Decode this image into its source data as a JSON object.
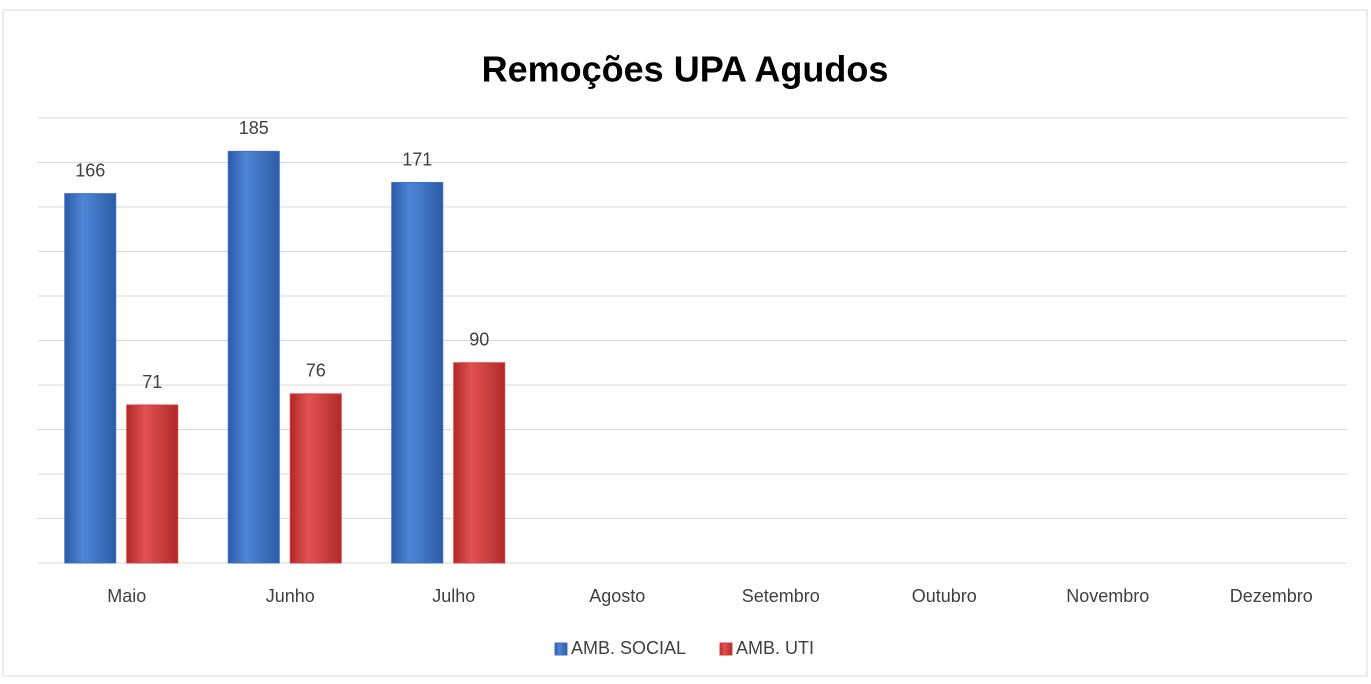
{
  "chart_data": {
    "type": "bar",
    "title": "Remoções UPA Agudos",
    "categories": [
      "Maio",
      "Junho",
      "Julho",
      "Agosto",
      "Setembro",
      "Outubro",
      "Novembro",
      "Dezembro"
    ],
    "series": [
      {
        "name": "AMB. SOCIAL",
        "color": "#3b6fc4",
        "values": [
          166,
          185,
          171,
          null,
          null,
          null,
          null,
          null
        ]
      },
      {
        "name": "AMB. UTI",
        "color": "#d83b3b",
        "values": [
          71,
          76,
          90,
          null,
          null,
          null,
          null,
          null
        ]
      }
    ],
    "ylim": [
      0,
      200
    ],
    "yticks": [
      0,
      20,
      40,
      60,
      80,
      100,
      120,
      140,
      160,
      180,
      200
    ],
    "grid": true,
    "legend": "bottom"
  }
}
